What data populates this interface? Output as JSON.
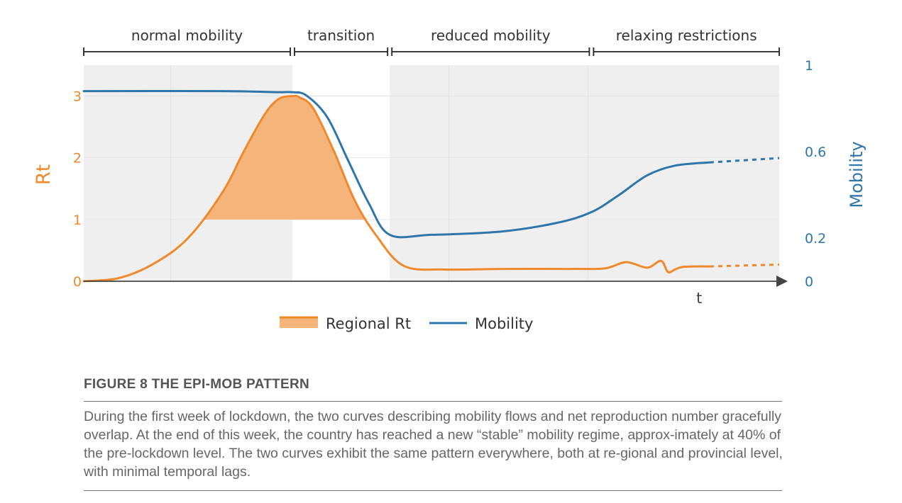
{
  "chart_data": {
    "type": "line",
    "title": "",
    "xlabel": "t",
    "ylabel": "Rt",
    "y2label": "Mobility",
    "ylim": [
      0,
      3.5
    ],
    "y2lim": [
      0,
      1
    ],
    "yticks": [
      "0",
      "1",
      "2",
      "3"
    ],
    "y2ticks": [
      "0",
      "0.2",
      "0.6",
      "1"
    ],
    "phases": [
      {
        "label": "normal mobility",
        "start": 0.0,
        "end": 0.3,
        "shaded": true
      },
      {
        "label": "transition",
        "start": 0.3,
        "end": 0.44,
        "shaded": false
      },
      {
        "label": "reduced mobility",
        "start": 0.44,
        "end": 0.73,
        "shaded": true
      },
      {
        "label": "relaxing restrictions",
        "start": 0.73,
        "end": 1.0,
        "shaded": true
      }
    ],
    "series": [
      {
        "name": "Regional Rt",
        "axis": "left",
        "color": "#f0892b",
        "fill_above": 1,
        "x": [
          0.0,
          0.05,
          0.1,
          0.15,
          0.2,
          0.23,
          0.26,
          0.28,
          0.3,
          0.31,
          0.33,
          0.36,
          0.39,
          0.42,
          0.46,
          0.52,
          0.6,
          0.7,
          0.75,
          0.78,
          0.81,
          0.83,
          0.84,
          0.85,
          0.86,
          0.88,
          0.9
        ],
        "y": [
          0.0,
          0.05,
          0.28,
          0.7,
          1.45,
          2.1,
          2.7,
          2.95,
          3.0,
          2.98,
          2.8,
          2.1,
          1.3,
          0.75,
          0.25,
          0.19,
          0.2,
          0.2,
          0.21,
          0.31,
          0.22,
          0.33,
          0.15,
          0.19,
          0.23,
          0.24,
          0.24
        ]
      },
      {
        "name": "Regional Rt projection",
        "axis": "left",
        "color": "#f0892b",
        "dashed": true,
        "x": [
          0.9,
          1.0
        ],
        "y": [
          0.24,
          0.27
        ]
      },
      {
        "name": "Mobility",
        "axis": "right",
        "color": "#2e76aa",
        "x": [
          0.0,
          0.2,
          0.28,
          0.3,
          0.32,
          0.35,
          0.38,
          0.41,
          0.44,
          0.5,
          0.6,
          0.68,
          0.73,
          0.77,
          0.81,
          0.85,
          0.9
        ],
        "y": [
          0.88,
          0.88,
          0.875,
          0.875,
          0.86,
          0.76,
          0.56,
          0.36,
          0.215,
          0.215,
          0.23,
          0.27,
          0.32,
          0.4,
          0.49,
          0.535,
          0.55
        ]
      },
      {
        "name": "Mobility projection",
        "axis": "right",
        "color": "#2e76aa",
        "dashed": true,
        "x": [
          0.9,
          1.0
        ],
        "y": [
          0.55,
          0.57
        ]
      }
    ],
    "legend": {
      "position": "bottom",
      "items": [
        {
          "label": "Regional Rt",
          "kind": "area",
          "color": "#f0892b",
          "fill": "#f5b47a"
        },
        {
          "label": "Mobility",
          "kind": "line",
          "color": "#2e76aa"
        }
      ]
    }
  },
  "caption": {
    "title": "FIGURE 8  THE EPI-MOB PATTERN",
    "text": "During the first week of lockdown, the two curves describing mobility flows and net reproduction number gracefully overlap. At the end of this week, the country has reached a new “stable” mobility regime, approx-imately at 40% of the pre-lockdown level. The two curves exhibit the same pattern everywhere, both at re-gional and provincial level, with minimal temporal lags."
  }
}
